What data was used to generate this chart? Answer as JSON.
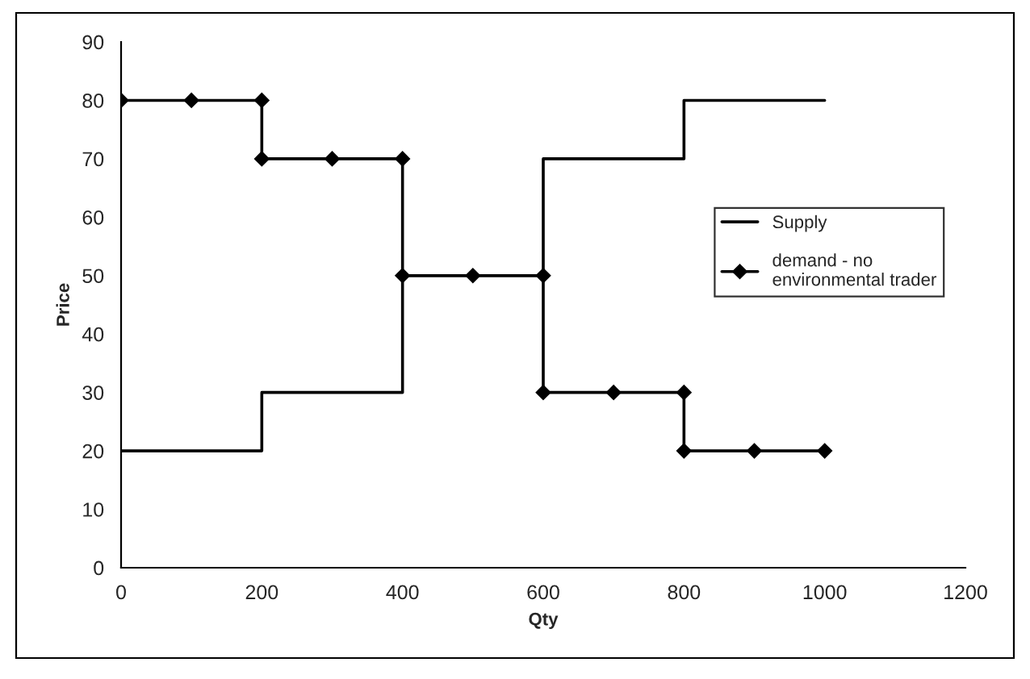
{
  "chart_data": {
    "type": "line",
    "xlabel": "Qty",
    "ylabel": "Price",
    "series": [
      {
        "name": "Supply",
        "type": "step",
        "color": "#000000",
        "marker": "none",
        "x": [
          0,
          200,
          400,
          600,
          800,
          1000
        ],
        "values": [
          20,
          30,
          50,
          70,
          80,
          80
        ]
      },
      {
        "name": "demand - no\nenvironmental trader",
        "color": "#000000",
        "marker": "diamond",
        "x": [
          0,
          100,
          200,
          200,
          300,
          400,
          400,
          500,
          600,
          600,
          700,
          800,
          800,
          900,
          1000
        ],
        "values": [
          80,
          80,
          80,
          70,
          70,
          70,
          50,
          50,
          50,
          30,
          30,
          30,
          20,
          20,
          20
        ]
      }
    ],
    "xlim": [
      0,
      1200
    ],
    "xticks": [
      0,
      200,
      400,
      600,
      800,
      1000,
      1200
    ],
    "ylim": [
      0,
      90
    ],
    "yticks": [
      0,
      10,
      20,
      30,
      40,
      50,
      60,
      70,
      80,
      90
    ],
    "grid": false,
    "legend": "right",
    "line_style": "solid"
  }
}
